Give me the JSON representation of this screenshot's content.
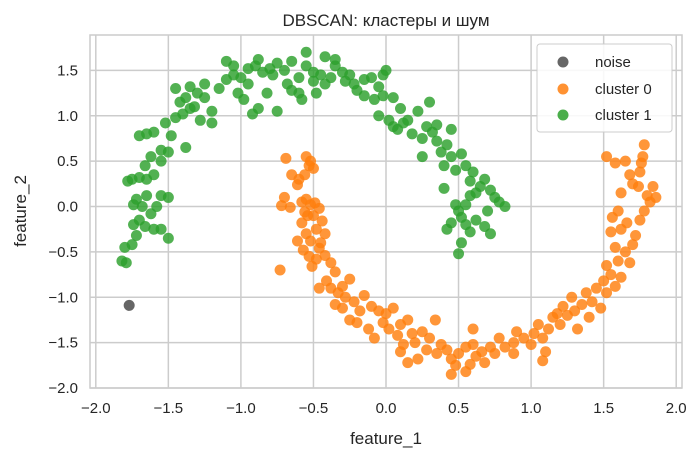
{
  "chart_data": {
    "type": "scatter",
    "title": "DBSCAN: кластеры и шум",
    "xlabel": "feature_1",
    "ylabel": "feature_2",
    "xlim": [
      -2.04,
      2.04
    ],
    "ylim": [
      -2.0,
      1.89
    ],
    "xticks": [
      -2.0,
      -1.5,
      -1.0,
      -0.5,
      0.0,
      0.5,
      1.0,
      1.5,
      2.0
    ],
    "yticks": [
      -2.0,
      -1.5,
      -1.0,
      -0.5,
      0.0,
      0.5,
      1.0,
      1.5
    ],
    "xtick_labels": [
      "−2.0",
      "−1.5",
      "−1.0",
      "−0.5",
      "0.0",
      "0.5",
      "1.0",
      "1.5",
      "2.0"
    ],
    "ytick_labels": [
      "−2.0",
      "−1.5",
      "−1.0",
      "−0.5",
      "0.0",
      "0.5",
      "1.0",
      "1.5"
    ],
    "grid": true,
    "legend_position": "upper right",
    "series": [
      {
        "name": "noise",
        "color": "#555555",
        "points": [
          [
            -1.77,
            -1.09
          ]
        ]
      },
      {
        "name": "cluster 0",
        "color": "#ff7f0e",
        "points": [
          [
            -0.69,
            0.53
          ],
          [
            -0.55,
            0.55
          ],
          [
            -0.52,
            0.5
          ],
          [
            -0.53,
            0.45
          ],
          [
            -0.5,
            0.42
          ],
          [
            -0.56,
            0.35
          ],
          [
            -0.6,
            0.3
          ],
          [
            -0.61,
            0.24
          ],
          [
            -0.65,
            0.35
          ],
          [
            -0.7,
            0.1
          ],
          [
            -0.72,
            0.01
          ],
          [
            -0.66,
            -0.01
          ],
          [
            -0.58,
            0.05
          ],
          [
            -0.55,
            0.08
          ],
          [
            -0.52,
            0.02
          ],
          [
            -0.49,
            0.04
          ],
          [
            -0.46,
            -0.02
          ],
          [
            -0.56,
            -0.06
          ],
          [
            -0.54,
            -0.1
          ],
          [
            -0.58,
            -0.18
          ],
          [
            -0.5,
            -0.1
          ],
          [
            -0.44,
            -0.16
          ],
          [
            -0.48,
            -0.25
          ],
          [
            -0.55,
            -0.3
          ],
          [
            -0.52,
            -0.38
          ],
          [
            -0.45,
            -0.4
          ],
          [
            -0.42,
            -0.3
          ],
          [
            -0.46,
            -0.46
          ],
          [
            -0.61,
            -0.38
          ],
          [
            -0.57,
            -0.48
          ],
          [
            -0.53,
            -0.55
          ],
          [
            -0.48,
            -0.58
          ],
          [
            -0.42,
            -0.54
          ],
          [
            -0.51,
            -0.66
          ],
          [
            -0.73,
            -0.7
          ],
          [
            -0.38,
            -0.62
          ],
          [
            -0.35,
            -0.72
          ],
          [
            -0.41,
            -0.82
          ],
          [
            -0.46,
            -0.9
          ],
          [
            -0.38,
            -0.9
          ],
          [
            -0.33,
            -0.95
          ],
          [
            -0.3,
            -0.88
          ],
          [
            -0.25,
            -0.8
          ],
          [
            -0.28,
            -1.0
          ],
          [
            -0.22,
            -1.05
          ],
          [
            -0.35,
            -1.08
          ],
          [
            -0.3,
            -1.12
          ],
          [
            -0.18,
            -1.15
          ],
          [
            -0.15,
            -0.98
          ],
          [
            -0.1,
            -1.1
          ],
          [
            -0.05,
            -1.15
          ],
          [
            0.0,
            -1.18
          ],
          [
            0.05,
            -1.12
          ],
          [
            -0.02,
            -1.28
          ],
          [
            0.02,
            -1.35
          ],
          [
            -0.25,
            -1.25
          ],
          [
            -0.2,
            -1.28
          ],
          [
            -0.12,
            -1.35
          ],
          [
            -0.08,
            -1.45
          ],
          [
            0.08,
            -1.42
          ],
          [
            0.1,
            -1.3
          ],
          [
            0.15,
            -1.25
          ],
          [
            0.18,
            -1.4
          ],
          [
            0.12,
            -1.52
          ],
          [
            0.2,
            -1.5
          ],
          [
            0.25,
            -1.38
          ],
          [
            0.3,
            -1.45
          ],
          [
            0.28,
            -1.58
          ],
          [
            0.35,
            -1.62
          ],
          [
            0.1,
            -1.6
          ],
          [
            0.15,
            -1.72
          ],
          [
            0.22,
            -1.68
          ],
          [
            0.38,
            -1.52
          ],
          [
            0.42,
            -1.58
          ],
          [
            0.45,
            -1.68
          ],
          [
            0.5,
            -1.62
          ],
          [
            0.55,
            -1.55
          ],
          [
            0.48,
            -1.75
          ],
          [
            0.6,
            -1.52
          ],
          [
            0.62,
            -1.65
          ],
          [
            0.66,
            -1.6
          ],
          [
            0.58,
            -1.74
          ],
          [
            0.45,
            -1.85
          ],
          [
            0.55,
            -1.82
          ],
          [
            0.68,
            -1.72
          ],
          [
            0.72,
            -1.55
          ],
          [
            0.78,
            -1.45
          ],
          [
            0.75,
            -1.62
          ],
          [
            0.82,
            -1.55
          ],
          [
            0.88,
            -1.5
          ],
          [
            0.9,
            -1.38
          ],
          [
            0.95,
            -1.45
          ],
          [
            1.0,
            -1.52
          ],
          [
            1.02,
            -1.4
          ],
          [
            1.05,
            -1.3
          ],
          [
            1.08,
            -1.45
          ],
          [
            1.12,
            -1.35
          ],
          [
            1.15,
            -1.22
          ],
          [
            1.1,
            -1.6
          ],
          [
            1.2,
            -1.3
          ],
          [
            1.18,
            -1.18
          ],
          [
            1.22,
            -1.1
          ],
          [
            1.25,
            -1.2
          ],
          [
            1.28,
            -1.0
          ],
          [
            1.3,
            -1.15
          ],
          [
            1.32,
            -1.35
          ],
          [
            1.35,
            -1.08
          ],
          [
            1.38,
            -0.95
          ],
          [
            1.42,
            -1.05
          ],
          [
            1.45,
            -0.9
          ],
          [
            1.48,
            -1.12
          ],
          [
            1.5,
            -0.82
          ],
          [
            1.52,
            -0.95
          ],
          [
            1.55,
            -0.75
          ],
          [
            1.58,
            -0.88
          ],
          [
            1.52,
            -0.65
          ],
          [
            1.6,
            -0.6
          ],
          [
            1.62,
            -0.78
          ],
          [
            1.65,
            -0.5
          ],
          [
            1.58,
            -0.45
          ],
          [
            1.7,
            -0.42
          ],
          [
            1.68,
            -0.62
          ],
          [
            1.72,
            -0.32
          ],
          [
            1.62,
            -0.25
          ],
          [
            1.66,
            -0.18
          ],
          [
            1.55,
            -0.28
          ],
          [
            1.56,
            -0.12
          ],
          [
            1.6,
            -0.05
          ],
          [
            1.75,
            -0.15
          ],
          [
            1.78,
            -0.05
          ],
          [
            1.82,
            0.05
          ],
          [
            1.8,
            0.12
          ],
          [
            1.74,
            0.22
          ],
          [
            1.7,
            0.25
          ],
          [
            1.62,
            0.15
          ],
          [
            1.68,
            0.35
          ],
          [
            1.75,
            0.38
          ],
          [
            1.58,
            0.48
          ],
          [
            1.65,
            0.5
          ],
          [
            1.76,
            0.48
          ],
          [
            1.78,
            0.68
          ],
          [
            1.77,
            0.55
          ],
          [
            1.52,
            0.55
          ],
          [
            1.84,
            0.22
          ],
          [
            1.86,
            0.1
          ],
          [
            1.08,
            -1.7
          ],
          [
            0.88,
            -1.62
          ],
          [
            0.34,
            -1.25
          ],
          [
            0.6,
            -1.35
          ],
          [
            1.4,
            -1.22
          ]
        ]
      },
      {
        "name": "cluster 1",
        "color": "#2ca02c",
        "points": [
          [
            -1.82,
            -0.6
          ],
          [
            -1.79,
            -0.62
          ],
          [
            -1.8,
            -0.45
          ],
          [
            -1.75,
            -0.42
          ],
          [
            -1.72,
            -0.32
          ],
          [
            -1.74,
            -0.2
          ],
          [
            -1.7,
            -0.15
          ],
          [
            -1.66,
            -0.22
          ],
          [
            -1.62,
            -0.08
          ],
          [
            -1.68,
            0.0
          ],
          [
            -1.74,
            0.02
          ],
          [
            -1.72,
            0.08
          ],
          [
            -1.6,
            -0.25
          ],
          [
            -1.55,
            -0.25
          ],
          [
            -1.5,
            -0.35
          ],
          [
            -1.55,
            0.12
          ],
          [
            -1.58,
            0.0
          ],
          [
            -1.5,
            0.1
          ],
          [
            -1.65,
            0.12
          ],
          [
            -1.78,
            0.28
          ],
          [
            -1.75,
            0.3
          ],
          [
            -1.7,
            0.32
          ],
          [
            -1.65,
            0.3
          ],
          [
            -1.6,
            0.35
          ],
          [
            -1.66,
            0.45
          ],
          [
            -1.62,
            0.55
          ],
          [
            -1.55,
            0.5
          ],
          [
            -1.5,
            0.6
          ],
          [
            -1.48,
            0.78
          ],
          [
            -1.55,
            0.62
          ],
          [
            -1.6,
            0.82
          ],
          [
            -1.65,
            0.8
          ],
          [
            -1.7,
            0.78
          ],
          [
            -1.52,
            0.92
          ],
          [
            -1.45,
            0.98
          ],
          [
            -1.4,
            1.02
          ],
          [
            -1.35,
            1.08
          ],
          [
            -1.42,
            1.15
          ],
          [
            -1.38,
            1.2
          ],
          [
            -1.32,
            1.1
          ],
          [
            -1.3,
            1.25
          ],
          [
            -1.35,
            1.32
          ],
          [
            -1.45,
            1.3
          ],
          [
            -1.25,
            1.2
          ],
          [
            -1.2,
            1.05
          ],
          [
            -1.28,
            0.95
          ],
          [
            -1.2,
            0.92
          ],
          [
            -1.15,
            1.3
          ],
          [
            -1.1,
            1.4
          ],
          [
            -1.05,
            1.45
          ],
          [
            -1.0,
            1.42
          ],
          [
            -0.95,
            1.35
          ],
          [
            -1.02,
            1.25
          ],
          [
            -0.98,
            1.18
          ],
          [
            -0.92,
            1.02
          ],
          [
            -0.88,
            1.08
          ],
          [
            -0.82,
            1.25
          ],
          [
            -0.85,
            1.48
          ],
          [
            -0.8,
            1.52
          ],
          [
            -0.78,
            1.45
          ],
          [
            -0.75,
            1.58
          ],
          [
            -0.9,
            1.55
          ],
          [
            -0.95,
            1.52
          ],
          [
            -0.7,
            1.5
          ],
          [
            -0.65,
            1.6
          ],
          [
            -0.68,
            1.35
          ],
          [
            -0.65,
            1.28
          ],
          [
            -0.6,
            1.42
          ],
          [
            -0.55,
            1.55
          ],
          [
            -0.5,
            1.48
          ],
          [
            -0.5,
            1.38
          ],
          [
            -0.45,
            1.45
          ],
          [
            -0.42,
            1.35
          ],
          [
            -0.48,
            1.25
          ],
          [
            -0.38,
            1.42
          ],
          [
            -0.35,
            1.55
          ],
          [
            -0.3,
            1.48
          ],
          [
            -0.28,
            1.38
          ],
          [
            -0.25,
            1.45
          ],
          [
            -0.22,
            1.35
          ],
          [
            -0.2,
            1.28
          ],
          [
            -0.15,
            1.4
          ],
          [
            -0.1,
            1.42
          ],
          [
            -0.05,
            1.32
          ],
          [
            -0.02,
            1.45
          ],
          [
            0.0,
            1.5
          ],
          [
            -0.55,
            1.7
          ],
          [
            -0.42,
            1.65
          ],
          [
            -0.35,
            1.62
          ],
          [
            -0.6,
            1.25
          ],
          [
            -0.88,
            1.62
          ],
          [
            -1.05,
            1.55
          ],
          [
            -1.25,
            1.35
          ],
          [
            -0.15,
            1.22
          ],
          [
            -0.08,
            1.18
          ],
          [
            -0.02,
            1.22
          ],
          [
            0.05,
            1.2
          ],
          [
            -0.05,
            1.0
          ],
          [
            0.02,
            0.95
          ],
          [
            0.05,
            0.88
          ],
          [
            0.08,
            0.85
          ],
          [
            0.12,
            0.92
          ],
          [
            0.15,
            0.95
          ],
          [
            0.18,
            0.8
          ],
          [
            0.22,
            1.05
          ],
          [
            0.25,
            0.75
          ],
          [
            0.28,
            0.88
          ],
          [
            0.32,
            0.82
          ],
          [
            0.35,
            0.72
          ],
          [
            0.38,
            0.6
          ],
          [
            0.42,
            0.68
          ],
          [
            0.45,
            0.55
          ],
          [
            0.4,
            0.45
          ],
          [
            0.48,
            0.4
          ],
          [
            0.52,
            0.58
          ],
          [
            0.55,
            0.45
          ],
          [
            0.6,
            0.38
          ],
          [
            0.58,
            0.28
          ],
          [
            0.65,
            0.22
          ],
          [
            0.62,
            0.15
          ],
          [
            0.68,
            0.3
          ],
          [
            0.72,
            0.18
          ],
          [
            0.75,
            0.1
          ],
          [
            0.78,
            0.05
          ],
          [
            0.7,
            -0.05
          ],
          [
            0.55,
            0.02
          ],
          [
            0.5,
            -0.05
          ],
          [
            0.48,
            0.02
          ],
          [
            0.52,
            -0.12
          ],
          [
            0.45,
            -0.18
          ],
          [
            0.42,
            -0.25
          ],
          [
            0.55,
            -0.2
          ],
          [
            0.58,
            -0.28
          ],
          [
            0.62,
            -0.15
          ],
          [
            0.68,
            -0.22
          ],
          [
            0.72,
            -0.3
          ],
          [
            0.52,
            -0.4
          ],
          [
            0.5,
            -0.52
          ],
          [
            0.25,
            0.55
          ],
          [
            0.58,
            0.12
          ],
          [
            0.35,
            0.9
          ],
          [
            0.1,
            1.08
          ],
          [
            0.3,
            1.15
          ],
          [
            0.45,
            0.85
          ],
          [
            0.4,
            0.2
          ],
          [
            0.82,
            0.0
          ],
          [
            -1.1,
            1.6
          ],
          [
            -0.75,
            1.05
          ],
          [
            -1.38,
            0.65
          ],
          [
            -0.58,
            1.18
          ]
        ]
      }
    ]
  }
}
